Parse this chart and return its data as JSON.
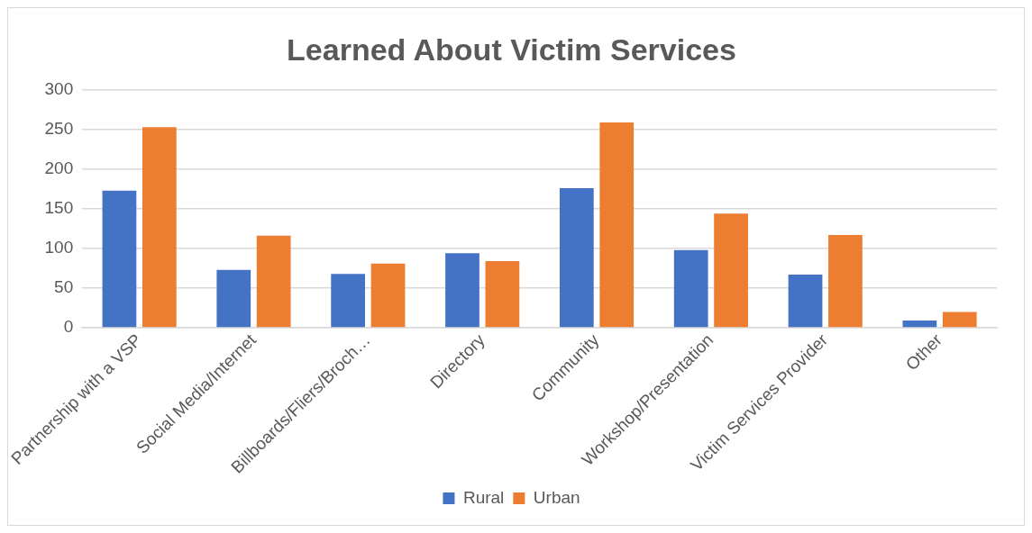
{
  "chart_data": {
    "type": "bar",
    "title": "Learned About Victim Services",
    "categories": [
      "Partnership with a VSP",
      "Social Media/Internet",
      "Billboards/Fliers/Broch…",
      "Directory",
      "Community",
      "Workshop/Presentation",
      "Victim Services Provider",
      "Other"
    ],
    "series": [
      {
        "name": "Rural",
        "color": "#4472c4",
        "values": [
          173,
          73,
          68,
          94,
          176,
          98,
          67,
          9
        ]
      },
      {
        "name": "Urban",
        "color": "#ed7d31",
        "values": [
          253,
          116,
          81,
          84,
          259,
          144,
          117,
          20
        ]
      }
    ],
    "ylim": [
      0,
      300
    ],
    "yticks": [
      0,
      50,
      100,
      150,
      200,
      250,
      300
    ],
    "grid": "y",
    "legend": "bottom"
  }
}
